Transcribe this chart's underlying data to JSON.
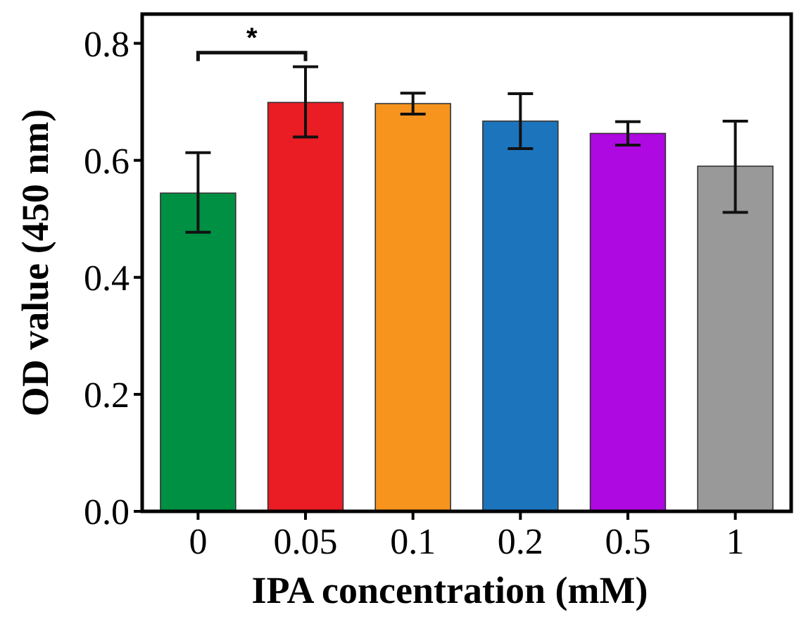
{
  "chart_data": {
    "type": "bar",
    "xlabel": "IPA concentration (mM)",
    "ylabel": "OD value (450 nm)",
    "categories": [
      "0",
      "0.05",
      "0.1",
      "0.2",
      "0.5",
      "1"
    ],
    "values": [
      0.544,
      0.699,
      0.697,
      0.667,
      0.646,
      0.59
    ],
    "colors": [
      "#009043",
      "#ea1c24",
      "#f7941d",
      "#1c75bc",
      "#ad09e0",
      "#999999"
    ],
    "errors": [
      [
        0.477,
        0.613
      ],
      [
        0.64,
        0.76
      ],
      [
        0.679,
        0.715
      ],
      [
        0.62,
        0.714
      ],
      [
        0.626,
        0.666
      ],
      [
        0.511,
        0.667
      ]
    ],
    "ylim": [
      0,
      0.85
    ],
    "yticks": [
      {
        "value": 0,
        "label": "0.0"
      },
      {
        "value": 0.2,
        "label": "0.2"
      },
      {
        "value": 0.4,
        "label": "0.4"
      },
      {
        "value": 0.6,
        "label": "0.6"
      },
      {
        "value": 0.8,
        "label": "0.8"
      }
    ],
    "annotations": [
      "*"
    ]
  }
}
